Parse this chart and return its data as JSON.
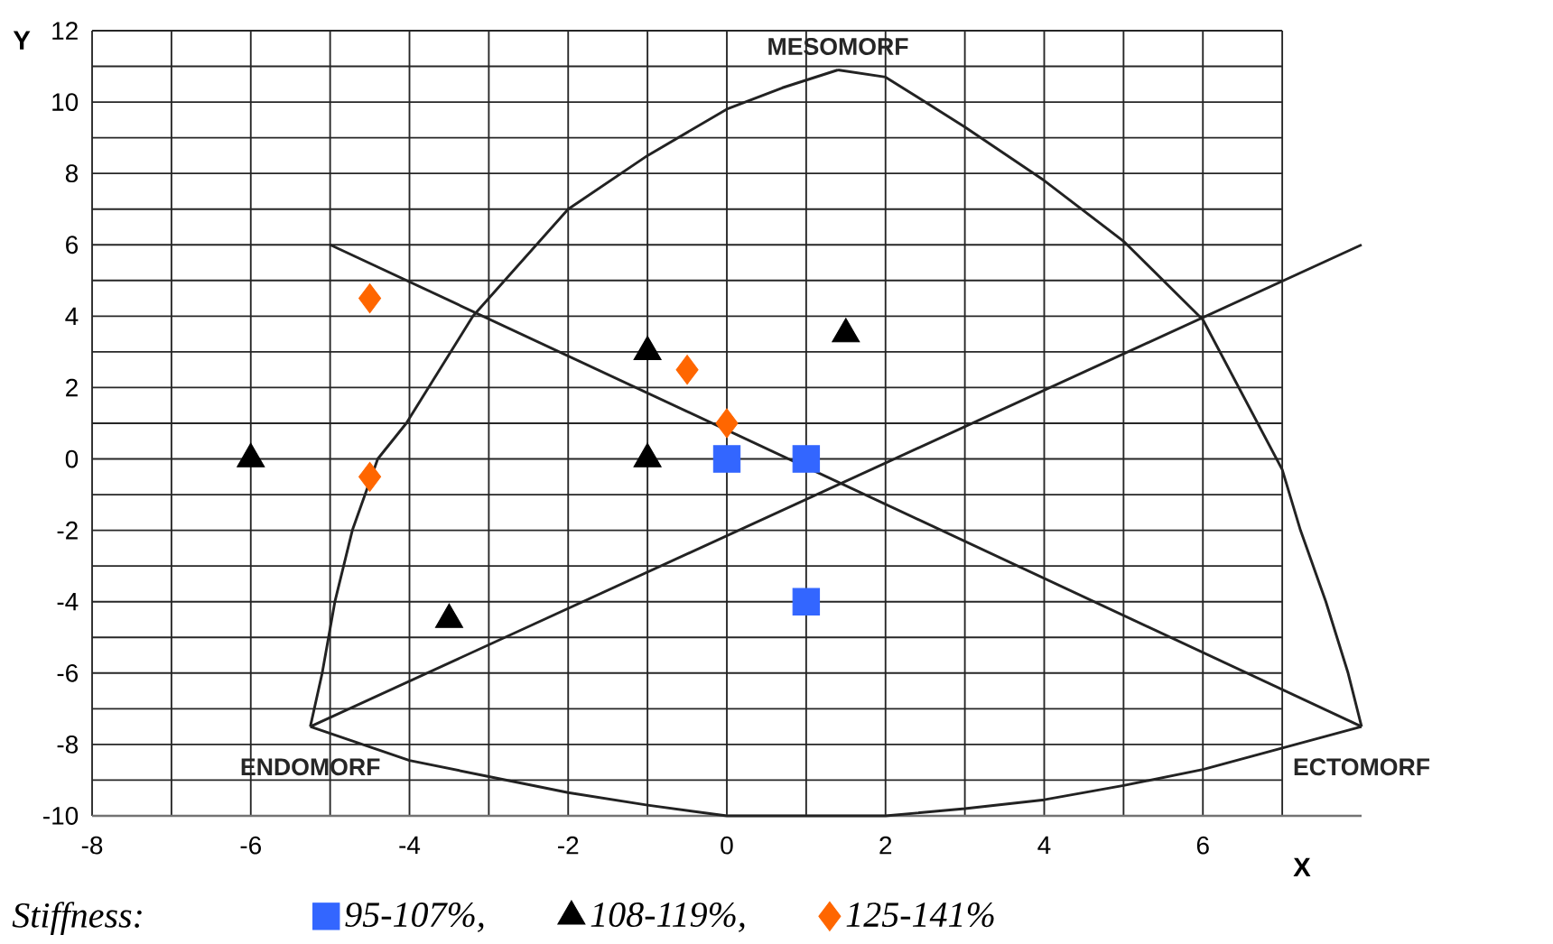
{
  "chart_data": {
    "type": "scatter",
    "xlabel": "X",
    "ylabel": "Y",
    "legend_title": "Stiffness:",
    "xlim": [
      -8,
      8
    ],
    "ylim": [
      -10,
      12
    ],
    "xticks": [
      -8,
      {
        "value": -7,
        "label": null
      },
      -6,
      {
        "value": -5,
        "label": null
      },
      -4,
      {
        "value": -3,
        "label": null
      },
      -2,
      {
        "value": -1,
        "label": null
      },
      0,
      {
        "value": 1,
        "label": null
      },
      2,
      {
        "value": 3,
        "label": null
      },
      4,
      {
        "value": 5,
        "label": null
      },
      6,
      {
        "value": 7,
        "label": null
      }
    ],
    "yticks": [
      -10,
      {
        "value": -9,
        "label": null
      },
      -8,
      {
        "value": -7,
        "label": null
      },
      -6,
      {
        "value": -5,
        "label": null
      },
      -4,
      {
        "value": -3,
        "label": null
      },
      -2,
      {
        "value": -1,
        "label": null
      },
      0,
      {
        "value": 1,
        "label": null
      },
      2,
      {
        "value": 3,
        "label": null
      },
      4,
      {
        "value": 5,
        "label": null
      },
      6,
      {
        "value": 7,
        "label": null
      },
      8,
      {
        "value": 9,
        "label": null
      },
      10,
      {
        "value": 11,
        "label": null
      },
      12
    ],
    "grid": true,
    "legend": "bottom",
    "series": [
      {
        "type": "line",
        "color": "#222222",
        "marker": "none",
        "x": [
          -5.25,
          -5.1,
          -4.94,
          -4.72,
          -4.4,
          -4.04,
          -3.2,
          -2.0,
          -1.0,
          0,
          0.7,
          1.4
        ],
        "values": [
          -7.5,
          -6,
          -4,
          -2,
          0,
          1,
          4,
          7,
          8.5,
          9.8,
          10.4,
          10.9
        ]
      },
      {
        "type": "line",
        "color": "#222222",
        "marker": "none",
        "x": [
          1.4,
          2.0,
          3.0,
          4.0,
          5.0,
          6.0,
          7.0,
          7.23,
          7.55,
          7.83,
          8.0
        ],
        "values": [
          10.9,
          10.7,
          9.3,
          7.8,
          6.1,
          3.9,
          -0.3,
          -2,
          -4,
          -6,
          -7.5
        ]
      },
      {
        "type": "line",
        "color": "#222222",
        "marker": "none",
        "x": [
          -5.25,
          -4.0,
          -3.0,
          -2.0,
          -1.0,
          0,
          1.0,
          2.0,
          3.0,
          4.0,
          5.0,
          6.0,
          7.0,
          8.0
        ],
        "values": [
          -7.5,
          -8.45,
          -8.9,
          -9.35,
          -9.7,
          -10,
          -10,
          -10,
          -9.8,
          -9.55,
          -9.15,
          -8.7,
          -8.1,
          -7.5
        ]
      },
      {
        "type": "line",
        "color": "#222222",
        "marker": "none",
        "x": [
          -5.0,
          8.0
        ],
        "values": [
          6,
          -7.5
        ]
      },
      {
        "type": "line",
        "color": "#222222",
        "marker": "none",
        "x": [
          -5.25,
          8.0
        ],
        "values": [
          -7.5,
          6
        ]
      },
      {
        "name": "95-107%,",
        "color": "#3366ff",
        "marker": "square",
        "x": [
          0,
          1,
          1
        ],
        "values": [
          0,
          0,
          -4
        ]
      },
      {
        "name": "108-119%,",
        "color": "#000000",
        "marker": "triangle",
        "x": [
          -6,
          -1,
          -1,
          1.5,
          -3.5
        ],
        "values": [
          0,
          3,
          0,
          3.5,
          -4.5
        ]
      },
      {
        "name": "125-141%",
        "color": "#ff6600",
        "marker": "diamond",
        "x": [
          -4.5,
          -4.5,
          -0.5,
          0
        ],
        "values": [
          4.5,
          -0.5,
          2.5,
          1
        ]
      }
    ],
    "annotations": [
      {
        "text": "MESOMORF",
        "x": 1.4,
        "y": 10.9
      },
      {
        "text": "ENDOMORF",
        "x": -5.25,
        "y": -7.5
      },
      {
        "text": "ECTOMORF",
        "x": 8.0,
        "y": -7.5
      }
    ]
  }
}
